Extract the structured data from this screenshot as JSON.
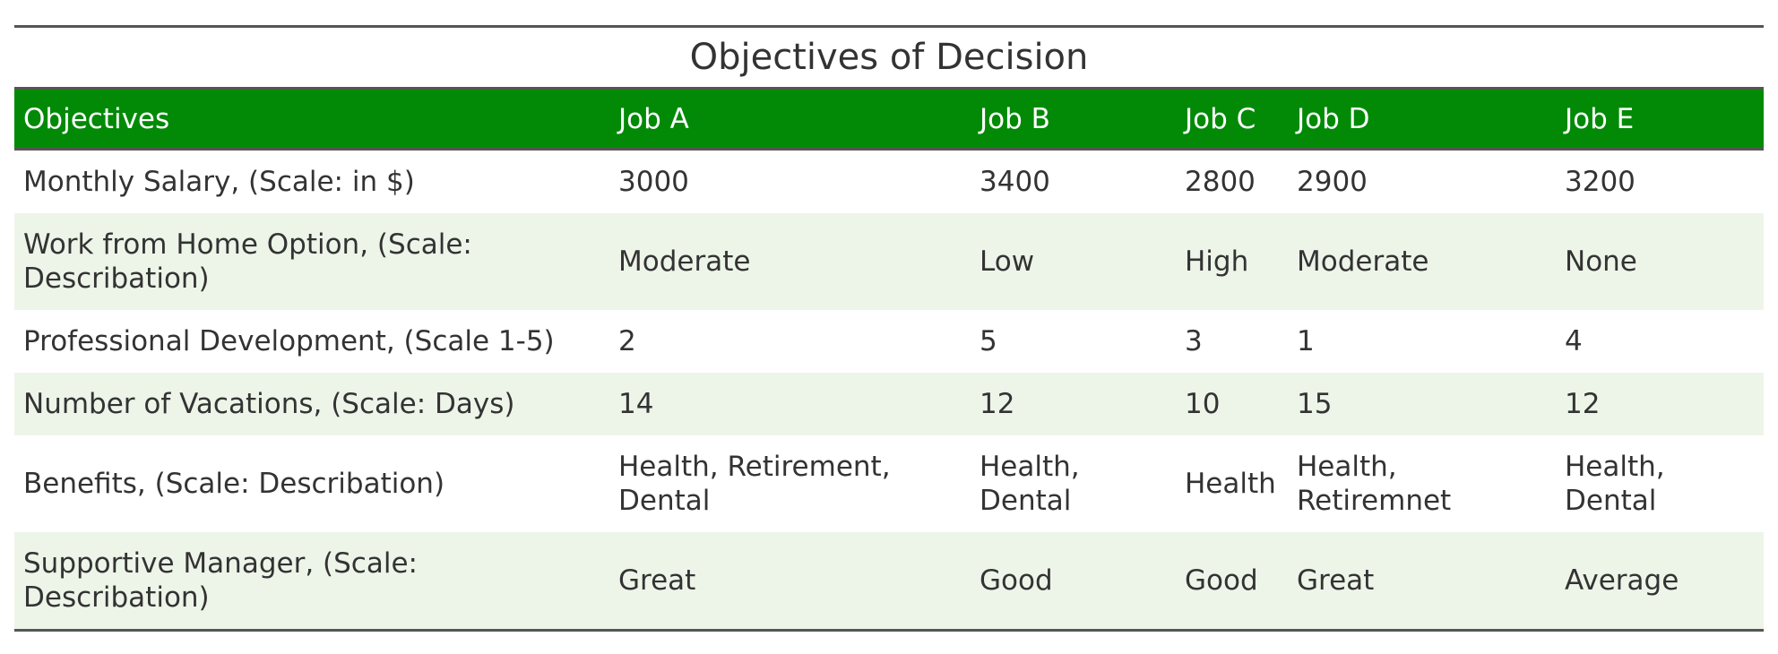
{
  "title": "Objectives of Decision",
  "columns": [
    "Objectives",
    "Job A",
    "Job B",
    "Job C",
    "Job D",
    "Job E"
  ],
  "rows": [
    [
      "Monthly Salary, (Scale: in $)",
      "3000",
      "3400",
      "2800",
      "2900",
      "3200"
    ],
    [
      "Work from Home Option, (Scale: Describation)",
      "Moderate",
      "Low",
      "High",
      "Moderate",
      "None"
    ],
    [
      "Professional Development, (Scale 1-5)",
      "2",
      "5",
      "3",
      "1",
      "4"
    ],
    [
      "Number of Vacations, (Scale: Days)",
      "14",
      "12",
      "10",
      "15",
      "12"
    ],
    [
      "Benefits, (Scale: Describation)",
      "Health, Retirement, Dental",
      "Health, Dental",
      "Health",
      "Health, Retiremnet",
      "Health, Dental"
    ],
    [
      "Supportive Manager, (Scale: Describation)",
      "Great",
      "Good",
      "Good",
      "Great",
      "Average"
    ]
  ],
  "colors": {
    "header_background": "#028a07",
    "header_text": "#ffffff",
    "stripe_background": "#edf5e9",
    "rule": "#555555"
  }
}
